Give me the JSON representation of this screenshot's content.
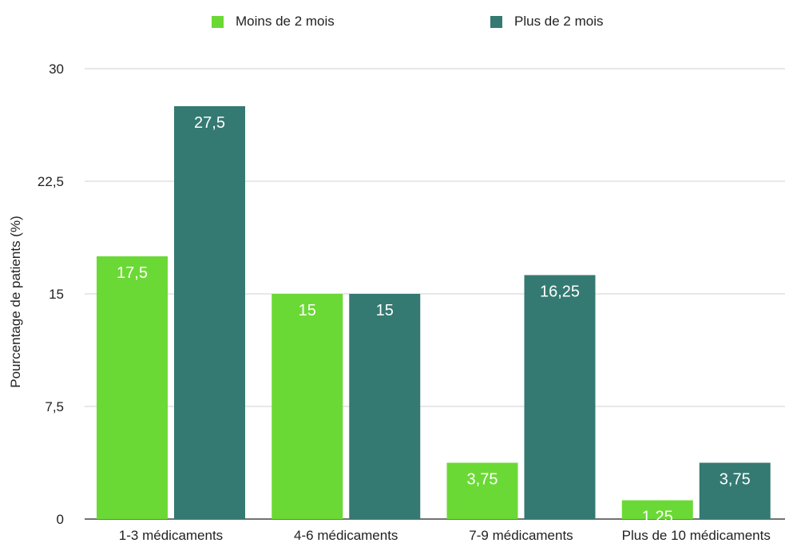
{
  "chart_data": {
    "type": "bar",
    "title": "",
    "xlabel": "",
    "ylabel": "Pourcentage de patients (%)",
    "categories": [
      "1-3 médicaments",
      "4-6 médicaments",
      "7-9 médicaments",
      "Plus de 10 médicaments"
    ],
    "series": [
      {
        "name": "Moins de 2 mois",
        "color": "#6bd935",
        "values": [
          17.5,
          15,
          3.75,
          1.25
        ],
        "labels": [
          "17,5",
          "15",
          "3,75",
          "1,25"
        ]
      },
      {
        "name": "Plus de 2 mois",
        "color": "#347a72",
        "values": [
          27.5,
          15,
          16.25,
          3.75
        ],
        "labels": [
          "27,5",
          "15",
          "16,25",
          "3,75"
        ]
      }
    ],
    "ylim": [
      0,
      30
    ],
    "yticks": [
      0,
      7.5,
      15,
      22.5,
      30
    ],
    "ytick_labels": [
      "0",
      "7,5",
      "15",
      "22,5",
      "30"
    ],
    "grid": true,
    "legend_position": "top-center"
  }
}
